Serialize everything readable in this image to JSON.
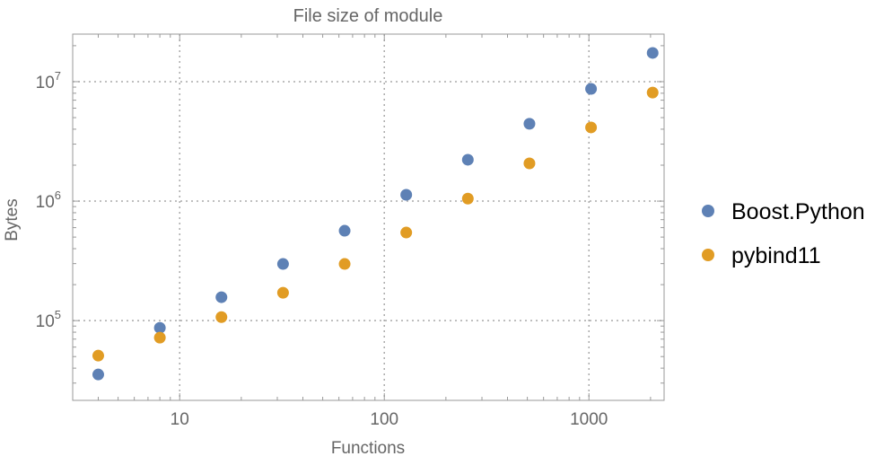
{
  "chart_data": {
    "type": "scatter",
    "title": "File size of module",
    "xlabel": "Functions",
    "ylabel": "Bytes",
    "xscale": "log",
    "yscale": "log",
    "xlim": [
      3,
      2330
    ],
    "ylim": [
      21500,
      25000000
    ],
    "grid": true,
    "legend_position": "right",
    "x_ticks": [
      {
        "value": 10,
        "label": "10"
      },
      {
        "value": 100,
        "label": "100"
      },
      {
        "value": 1000,
        "label": "1000"
      }
    ],
    "y_ticks": [
      {
        "value": 100000,
        "base": "10",
        "exp": "5"
      },
      {
        "value": 1000000,
        "base": "10",
        "exp": "6"
      },
      {
        "value": 10000000,
        "base": "10",
        "exp": "7"
      }
    ],
    "x": [
      4,
      8,
      16,
      32,
      64,
      128,
      256,
      512,
      1024,
      2048
    ],
    "series": [
      {
        "name": "Boost.Python",
        "color": "#5E81B5",
        "values": [
          35400,
          87000,
          157000,
          298000,
          565000,
          1130000,
          2220000,
          4440000,
          8700000,
          17400000
        ]
      },
      {
        "name": "pybind11",
        "color": "#E19C24",
        "values": [
          50900,
          72000,
          107000,
          171000,
          298000,
          546000,
          1050000,
          2070000,
          4140000,
          8100000
        ]
      }
    ]
  }
}
